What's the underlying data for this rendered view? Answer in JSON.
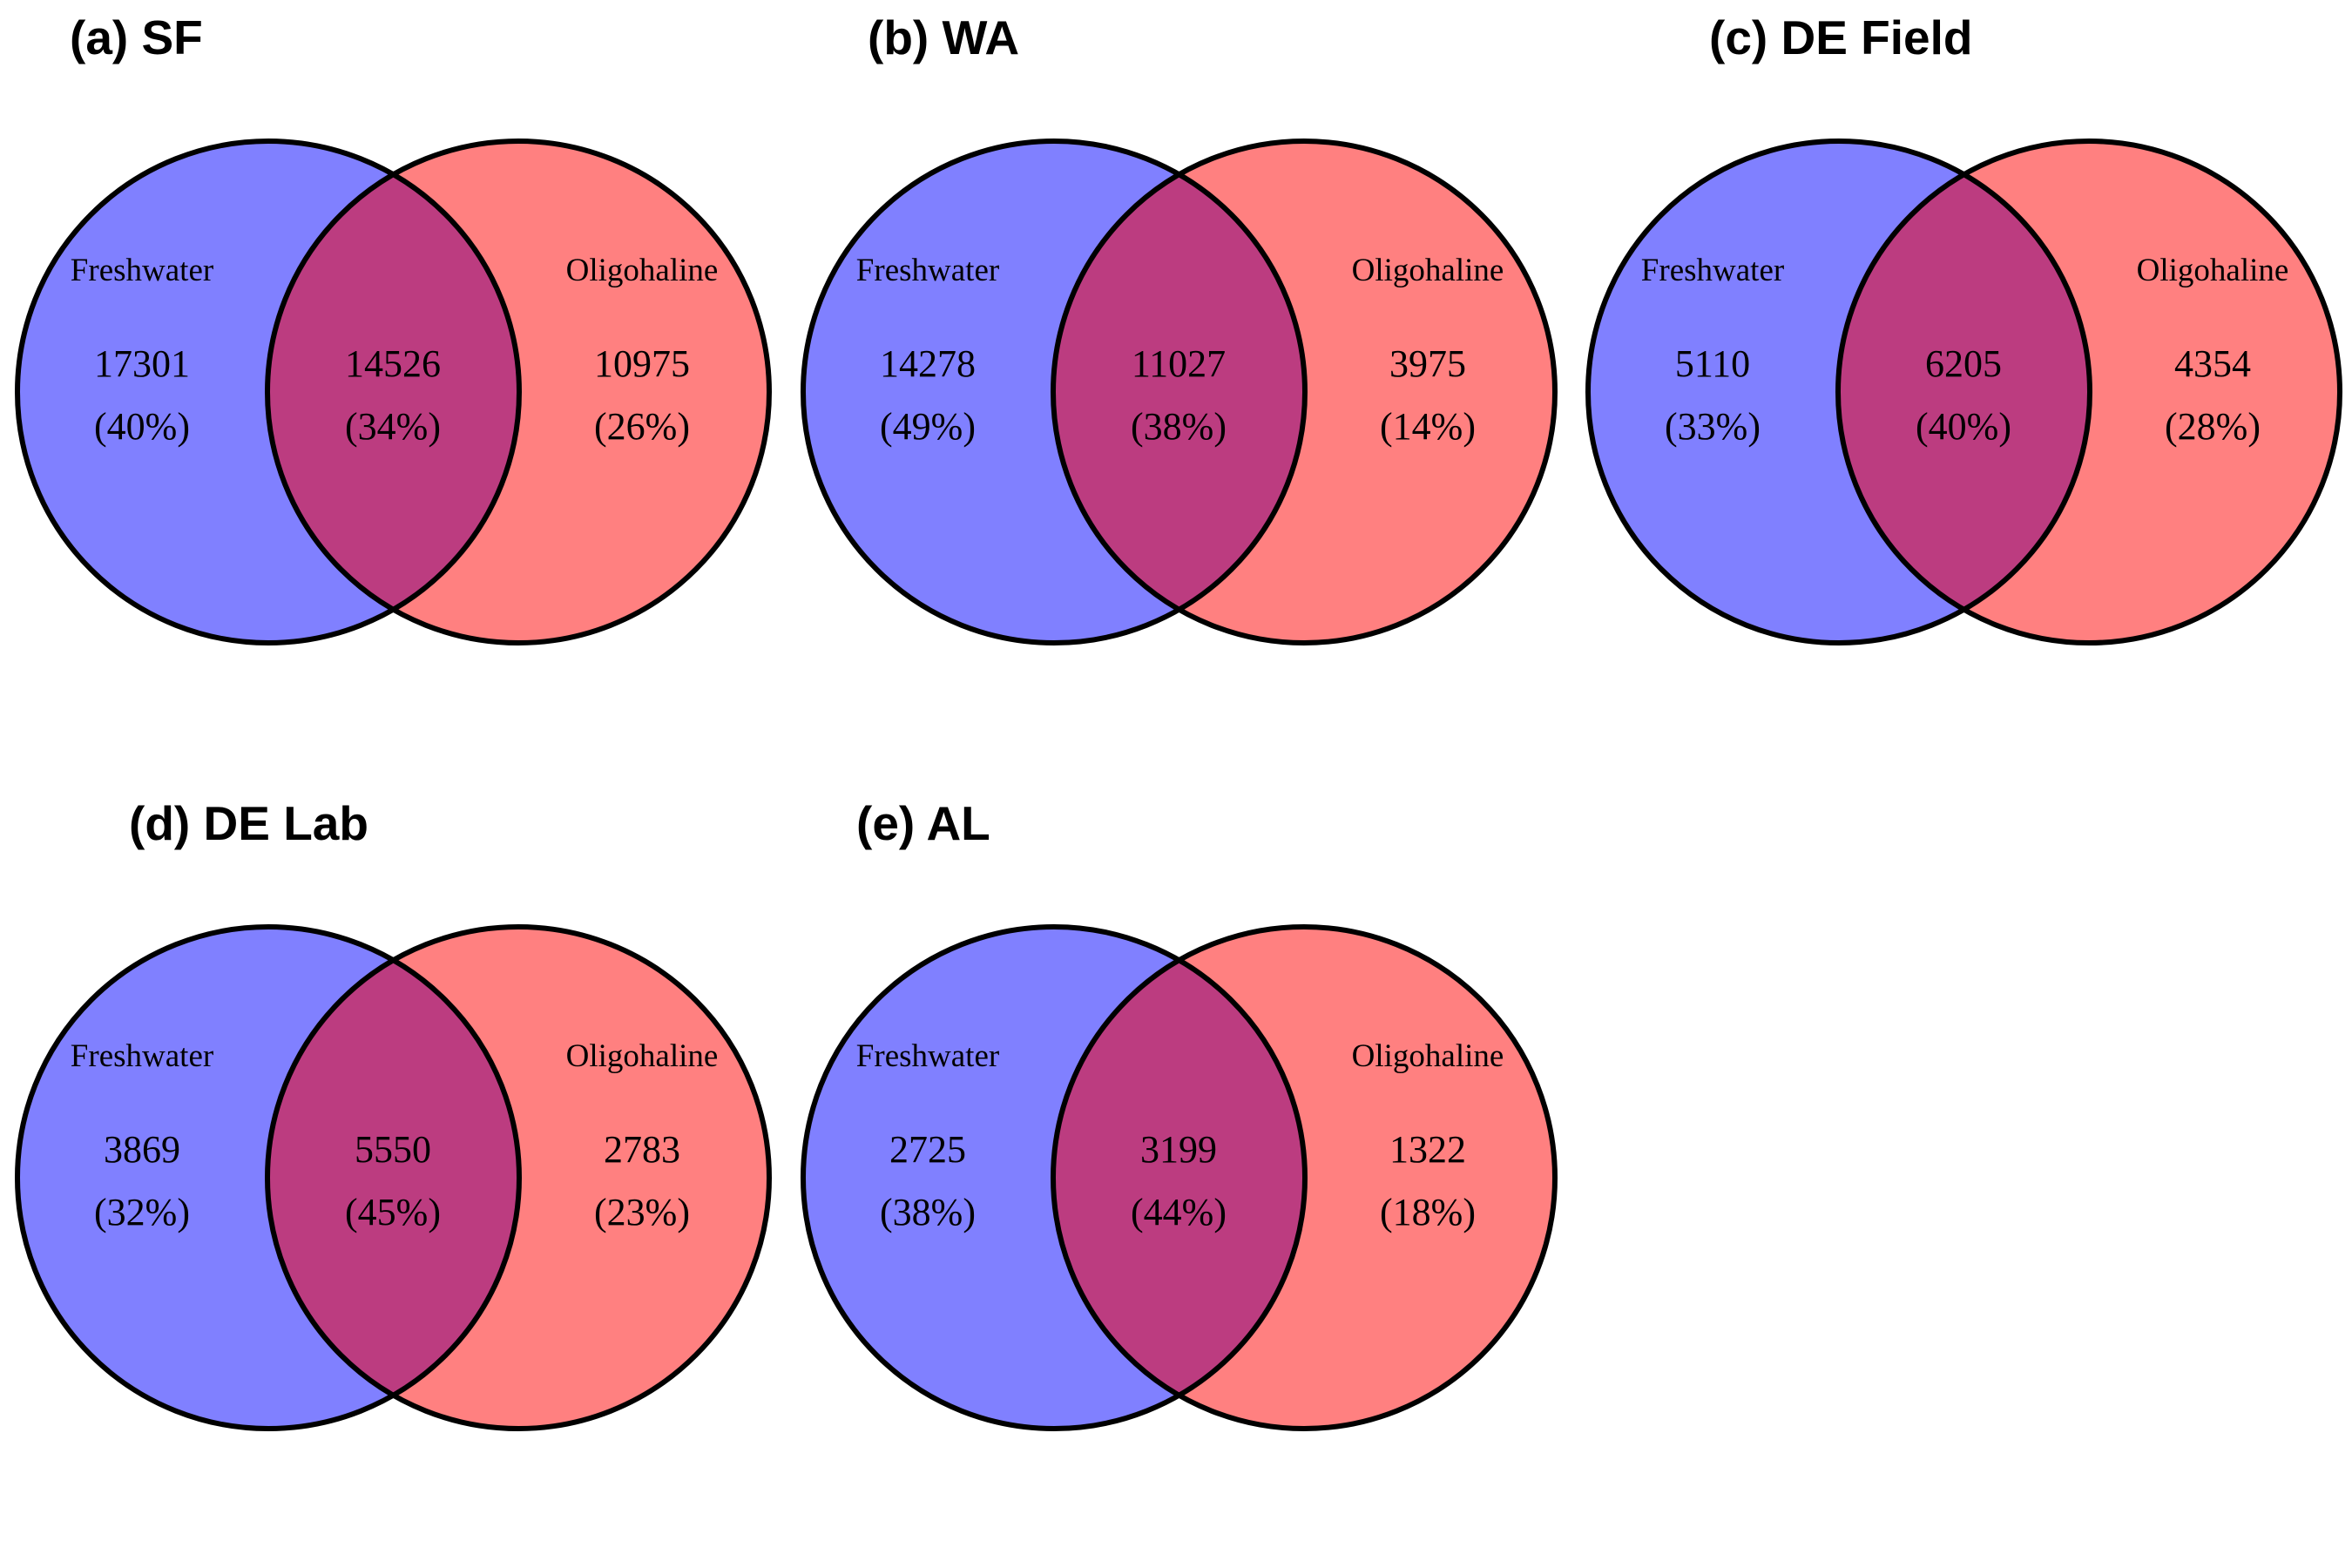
{
  "colors": {
    "left_fill": "#8080FF",
    "right_fill": "#FF8080",
    "overlap_fill": "#BC3C80",
    "outline": "#000000"
  },
  "panels": [
    {
      "title": "(a) SF",
      "left_label": "Freshwater",
      "right_label": "Oligohaline",
      "left_only": "17301",
      "left_only_pct": "(40%)",
      "overlap": "14526",
      "overlap_pct": "(34%)",
      "right_only": "10975",
      "right_only_pct": "(26%)"
    },
    {
      "title": "(b) WA",
      "left_label": "Freshwater",
      "right_label": "Oligohaline",
      "left_only": "14278",
      "left_only_pct": "(49%)",
      "overlap": "11027",
      "overlap_pct": "(38%)",
      "right_only": "3975",
      "right_only_pct": "(14%)"
    },
    {
      "title": "(c) DE Field",
      "left_label": "Freshwater",
      "right_label": "Oligohaline",
      "left_only": "5110",
      "left_only_pct": "(33%)",
      "overlap": "6205",
      "overlap_pct": "(40%)",
      "right_only": "4354",
      "right_only_pct": "(28%)"
    },
    {
      "title": "(d) DE Lab",
      "left_label": "Freshwater",
      "right_label": "Oligohaline",
      "left_only": "3869",
      "left_only_pct": "(32%)",
      "overlap": "5550",
      "overlap_pct": "(45%)",
      "right_only": "2783",
      "right_only_pct": "(23%)"
    },
    {
      "title": "(e) AL",
      "left_label": "Freshwater",
      "right_label": "Oligohaline",
      "left_only": "2725",
      "left_only_pct": "(38%)",
      "overlap": "3199",
      "overlap_pct": "(44%)",
      "right_only": "1322",
      "right_only_pct": "(18%)"
    }
  ]
}
